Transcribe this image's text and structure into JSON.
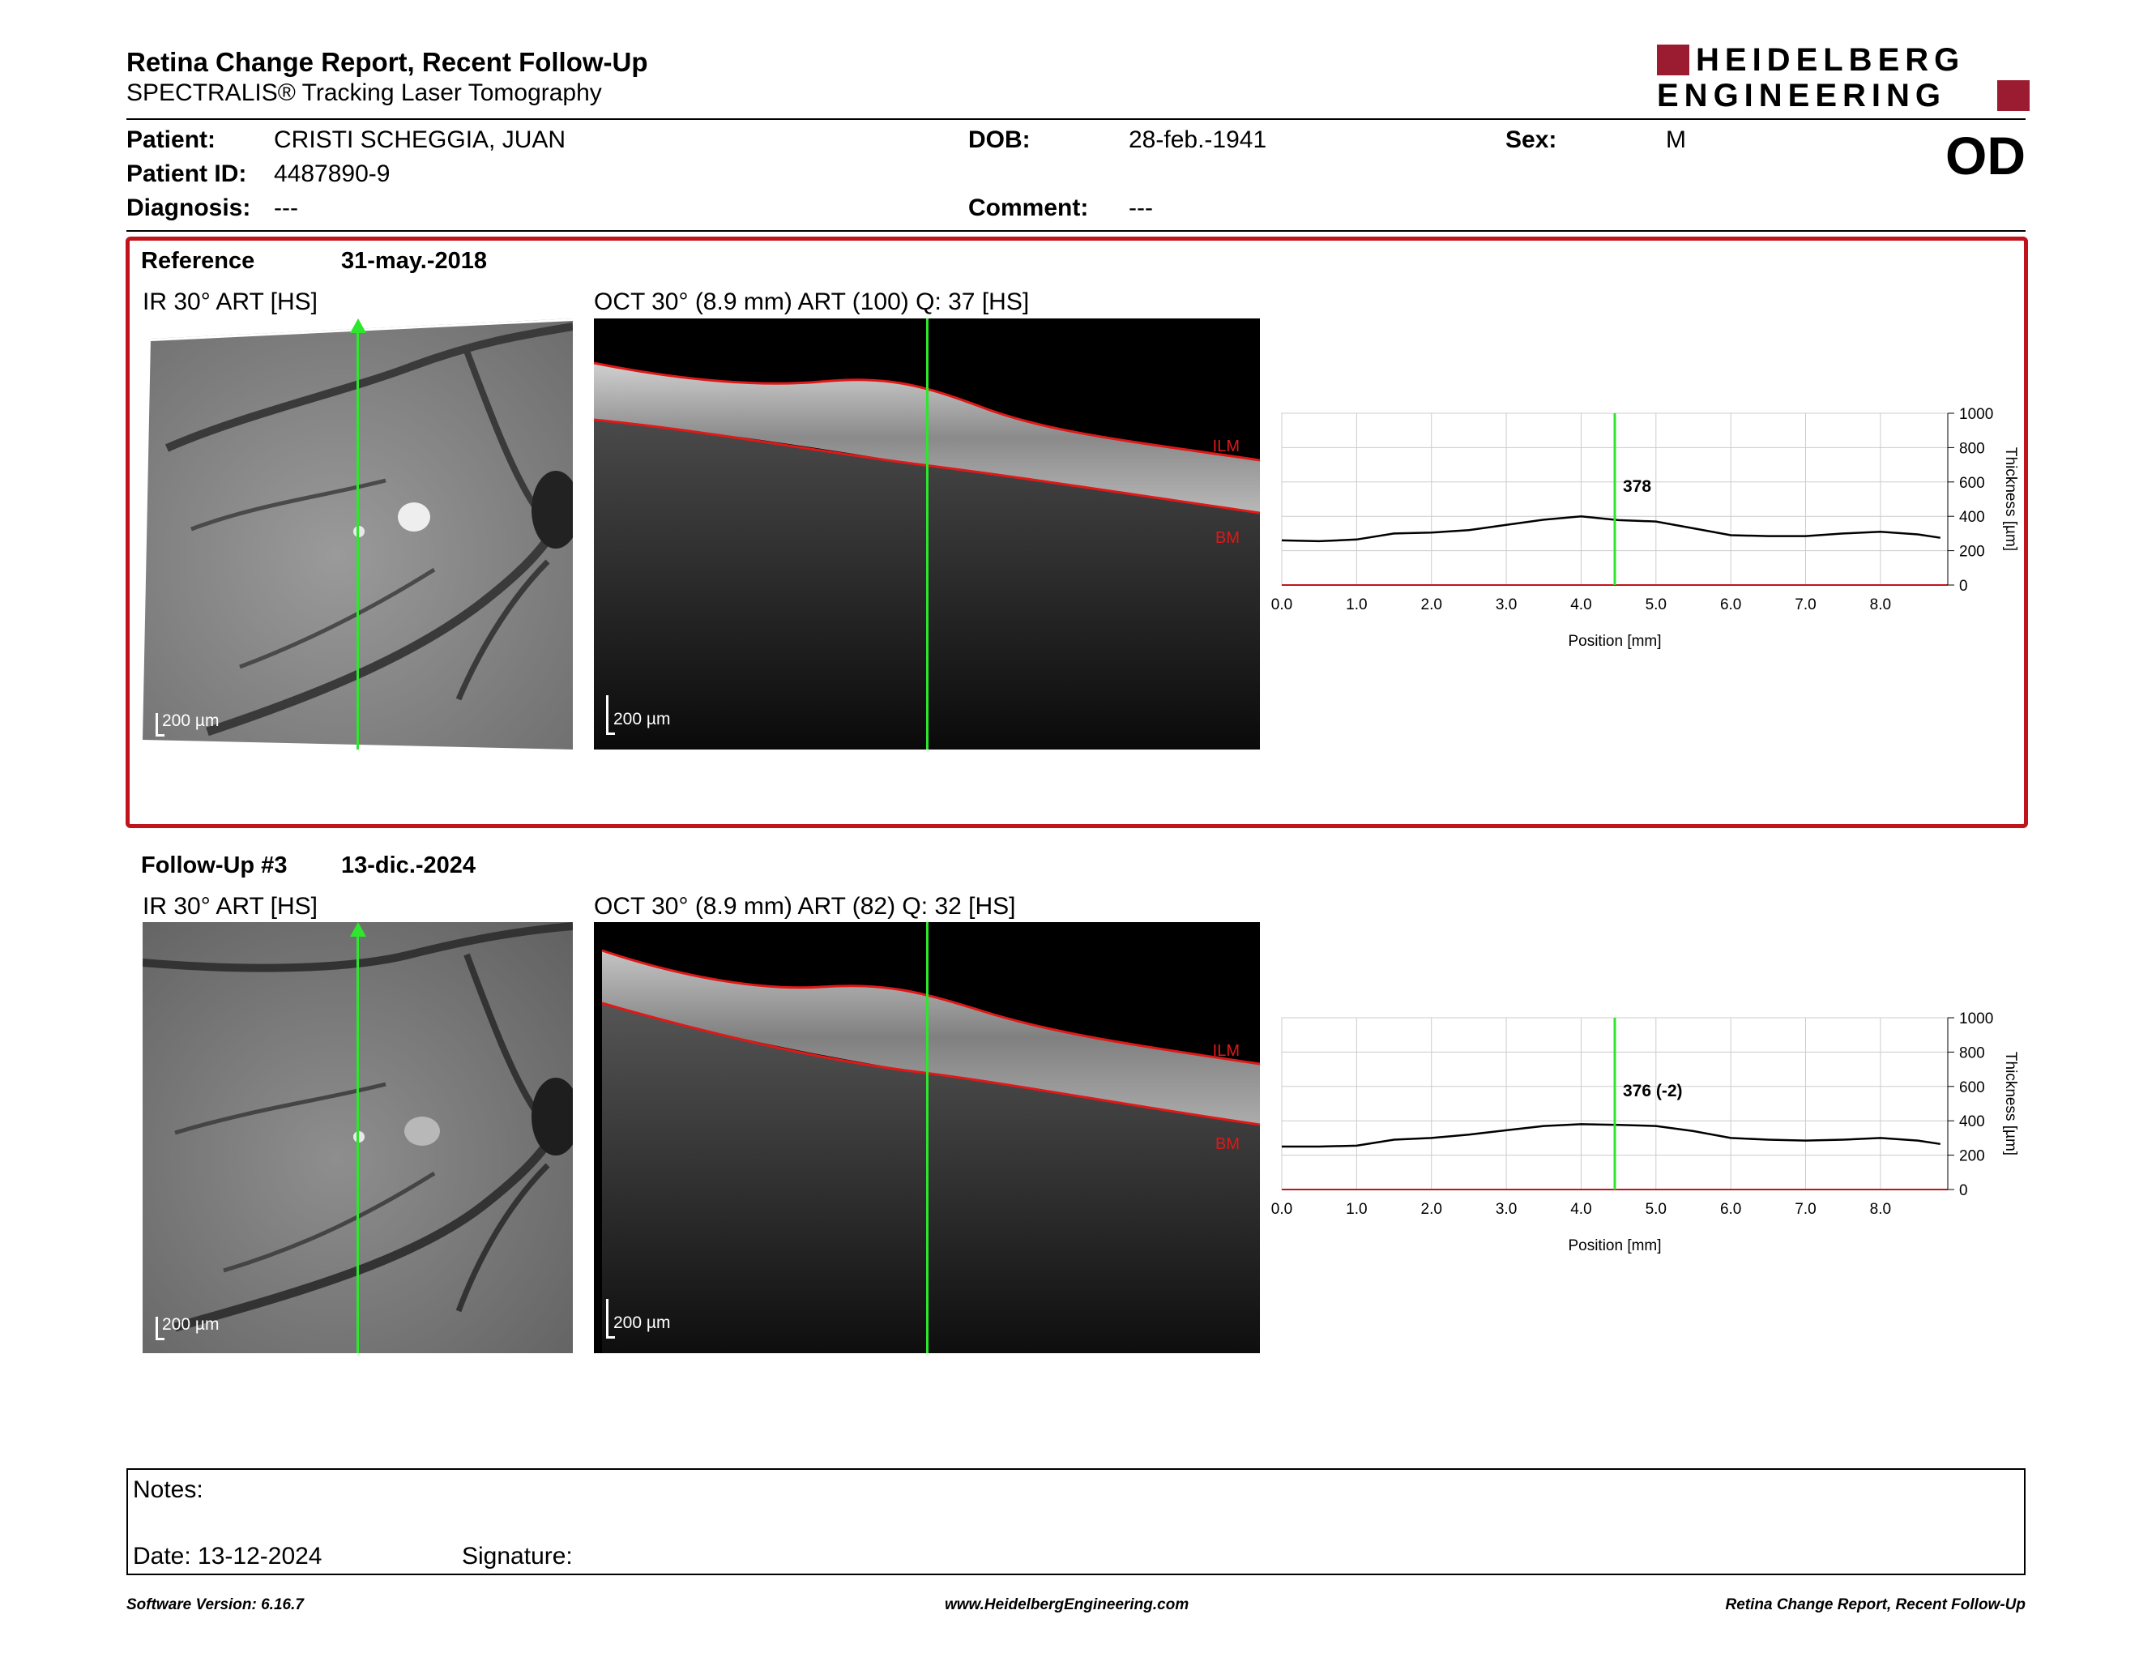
{
  "report": {
    "title": "Retina Change Report, Recent Follow-Up",
    "subtitle": "SPECTRALIS® Tracking Laser Tomography",
    "logo_line1": "HEIDELBERG",
    "logo_line2": "ENGINEERING",
    "eye": "OD"
  },
  "patient": {
    "patient_label": "Patient:",
    "patient_value": "CRISTI SCHEGGIA, JUAN",
    "id_label": "Patient ID:",
    "id_value": "4487890-9",
    "diagnosis_label": "Diagnosis:",
    "diagnosis_value": "---",
    "dob_label": "DOB:",
    "dob_value": "28-feb.-1941",
    "comment_label": "Comment:",
    "comment_value": "---",
    "sex_label": "Sex:",
    "sex_value": "M"
  },
  "reference": {
    "label": "Reference",
    "date": "31-may.-2018",
    "ir_label": "IR 30° ART [HS]",
    "oct_label": "OCT 30° (8.9 mm) ART (100) Q: 37 [HS]",
    "scale_label": "200 µm",
    "layer_top": "ILM",
    "layer_bottom": "BM"
  },
  "followup": {
    "label": "Follow-Up #3",
    "date": "13-dic.-2024",
    "ir_label": "IR 30° ART [HS]",
    "oct_label": "OCT 30° (8.9 mm) ART (82) Q: 32 [HS]",
    "scale_label": "200 µm",
    "layer_top": "ILM",
    "layer_bottom": "BM"
  },
  "chart_data": [
    {
      "type": "line",
      "xlabel": "Position [mm]",
      "ylabel": "Thickness [µm]",
      "xlim": [
        0,
        8.9
      ],
      "ylim": [
        0,
        1000
      ],
      "xticks": [
        "0.0",
        "1.0",
        "2.0",
        "3.0",
        "4.0",
        "5.0",
        "6.0",
        "7.0",
        "8.0"
      ],
      "yticks": [
        "0",
        "200",
        "400",
        "600",
        "800",
        "1000"
      ],
      "grid": true,
      "cursor_x": 4.45,
      "cursor_label": "378",
      "x": [
        0.0,
        0.5,
        1.0,
        1.5,
        2.0,
        2.5,
        3.0,
        3.5,
        4.0,
        4.5,
        5.0,
        5.5,
        6.0,
        6.5,
        7.0,
        7.5,
        8.0,
        8.5,
        8.8
      ],
      "series": [
        {
          "values": [
            260,
            255,
            265,
            300,
            305,
            320,
            350,
            380,
            400,
            378,
            370,
            330,
            290,
            285,
            285,
            300,
            310,
            295,
            275
          ]
        }
      ]
    },
    {
      "type": "line",
      "xlabel": "Position [mm]",
      "ylabel": "Thickness [µm]",
      "xlim": [
        0,
        8.9
      ],
      "ylim": [
        0,
        1000
      ],
      "xticks": [
        "0.0",
        "1.0",
        "2.0",
        "3.0",
        "4.0",
        "5.0",
        "6.0",
        "7.0",
        "8.0"
      ],
      "yticks": [
        "0",
        "200",
        "400",
        "600",
        "800",
        "1000"
      ],
      "grid": true,
      "cursor_x": 4.45,
      "cursor_label": "376 (-2)",
      "x": [
        0.0,
        0.5,
        1.0,
        1.5,
        2.0,
        2.5,
        3.0,
        3.5,
        4.0,
        4.5,
        5.0,
        5.5,
        6.0,
        6.5,
        7.0,
        7.5,
        8.0,
        8.5,
        8.8
      ],
      "series": [
        {
          "values": [
            250,
            250,
            255,
            290,
            300,
            320,
            345,
            370,
            380,
            376,
            370,
            340,
            300,
            290,
            285,
            290,
            300,
            285,
            265
          ]
        }
      ]
    }
  ],
  "notes": {
    "notes_label": "Notes:",
    "date_label": "Date: 13-12-2024",
    "signature_label": "Signature:"
  },
  "footer": {
    "left": "Software Version: 6.16.7",
    "center": "www.HeidelbergEngineering.com",
    "right": "Retina Change Report, Recent Follow-Up"
  },
  "colors": {
    "accent": "#c0141c",
    "logo": "#9b1b30",
    "scan_line": "#2ee62e",
    "layer_line": "#e01818"
  }
}
